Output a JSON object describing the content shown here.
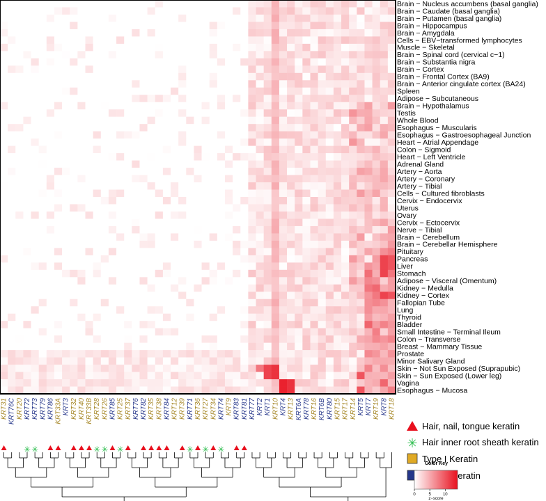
{
  "chart_data": {
    "type": "heatmap",
    "title": "",
    "xlabel": "",
    "ylabel": "",
    "columns": [
      {
        "name": "KRT31",
        "type": "I",
        "hair": "nail"
      },
      {
        "name": "KRT76C",
        "type": "II",
        "hair": ""
      },
      {
        "name": "KRT20",
        "type": "I",
        "hair": ""
      },
      {
        "name": "KRT72",
        "type": "II",
        "hair": "root"
      },
      {
        "name": "KRT73",
        "type": "II",
        "hair": "root"
      },
      {
        "name": "KRT79",
        "type": "II",
        "hair": ""
      },
      {
        "name": "KRT86",
        "type": "II",
        "hair": "nail"
      },
      {
        "name": "KRT33A",
        "type": "I",
        "hair": "nail"
      },
      {
        "name": "KRT3",
        "type": "II",
        "hair": ""
      },
      {
        "name": "KRT32",
        "type": "I",
        "hair": "nail"
      },
      {
        "name": "KRT40",
        "type": "I",
        "hair": "nail"
      },
      {
        "name": "KRT33B",
        "type": "I",
        "hair": "nail"
      },
      {
        "name": "KRT28",
        "type": "I",
        "hair": "root"
      },
      {
        "name": "KRT26",
        "type": "I",
        "hair": "root"
      },
      {
        "name": "KRT85",
        "type": "II",
        "hair": "nail"
      },
      {
        "name": "KRT25",
        "type": "I",
        "hair": "root"
      },
      {
        "name": "KRT37",
        "type": "I",
        "hair": "nail"
      },
      {
        "name": "KRT76",
        "type": "II",
        "hair": ""
      },
      {
        "name": "KRT82",
        "type": "II",
        "hair": "nail"
      },
      {
        "name": "KRT35",
        "type": "I",
        "hair": "nail"
      },
      {
        "name": "KRT38",
        "type": "I",
        "hair": "nail"
      },
      {
        "name": "KRT84",
        "type": "II",
        "hair": "nail"
      },
      {
        "name": "KRT12",
        "type": "I",
        "hair": ""
      },
      {
        "name": "KRT39",
        "type": "I",
        "hair": "nail"
      },
      {
        "name": "KRT71",
        "type": "II",
        "hair": "root"
      },
      {
        "name": "KRT36",
        "type": "I",
        "hair": "nail"
      },
      {
        "name": "KRT27",
        "type": "I",
        "hair": "root"
      },
      {
        "name": "KRT34",
        "type": "I",
        "hair": "nail"
      },
      {
        "name": "KRT74",
        "type": "II",
        "hair": "root"
      },
      {
        "name": "KRT9",
        "type": "I",
        "hair": ""
      },
      {
        "name": "KRT83",
        "type": "II",
        "hair": "nail"
      },
      {
        "name": "KRT81",
        "type": "II",
        "hair": "nail"
      },
      {
        "name": "KRT77",
        "type": "II",
        "hair": ""
      },
      {
        "name": "KRT2",
        "type": "II",
        "hair": ""
      },
      {
        "name": "KRT1",
        "type": "II",
        "hair": ""
      },
      {
        "name": "KRT10",
        "type": "I",
        "hair": ""
      },
      {
        "name": "KRT4",
        "type": "II",
        "hair": ""
      },
      {
        "name": "KRT13",
        "type": "I",
        "hair": ""
      },
      {
        "name": "KRT6A",
        "type": "II",
        "hair": ""
      },
      {
        "name": "KRT78",
        "type": "II",
        "hair": ""
      },
      {
        "name": "KRT16",
        "type": "I",
        "hair": ""
      },
      {
        "name": "KRT6B",
        "type": "II",
        "hair": ""
      },
      {
        "name": "KRT80",
        "type": "II",
        "hair": ""
      },
      {
        "name": "KRT15",
        "type": "I",
        "hair": ""
      },
      {
        "name": "KRT17",
        "type": "I",
        "hair": ""
      },
      {
        "name": "KRT14",
        "type": "I",
        "hair": ""
      },
      {
        "name": "KRT5",
        "type": "II",
        "hair": ""
      },
      {
        "name": "KRT7",
        "type": "II",
        "hair": ""
      },
      {
        "name": "KRT19",
        "type": "I",
        "hair": ""
      },
      {
        "name": "KRT8",
        "type": "II",
        "hair": ""
      },
      {
        "name": "KRT18",
        "type": "I",
        "hair": ""
      }
    ],
    "rows": [
      "Brain − Nucleus accumbens (basal ganglia)",
      "Brain − Caudate (basal ganglia)",
      "Brain − Putamen (basal ganglia)",
      "Brain − Hippocampus",
      "Brain − Amygdala",
      "Cells − EBV−transformed lymphocytes",
      "Muscle − Skeletal",
      "Brain − Spinal cord (cervical c−1)",
      "Brain − Substantia nigra",
      "Brain − Cortex",
      "Brain − Frontal Cortex (BA9)",
      "Brain − Anterior cingulate cortex (BA24)",
      "Spleen",
      "Adipose − Subcutaneous",
      "Brain − Hypothalamus",
      "Testis",
      "Whole Blood",
      "Esophagus − Muscularis",
      "Esophagus − Gastroesophageal Junction",
      "Heart − Atrial Appendage",
      "Colon − Sigmoid",
      "Heart − Left Ventricle",
      "Adrenal Gland",
      "Artery − Aorta",
      "Artery − Coronary",
      "Artery − Tibial",
      "Cells − Cultured fibroblasts",
      "Cervix − Endocervix",
      "Uterus",
      "Ovary",
      "Cervix − Ectocervix",
      "Nerve − Tibial",
      "Brain − Cerebellum",
      "Brain − Cerebellar Hemisphere",
      "Pituitary",
      "Pancreas",
      "Liver",
      "Stomach",
      "Adipose − Visceral (Omentum)",
      "Kidney − Medulla",
      "Kidney − Cortex",
      "Fallopian Tube",
      "Lung",
      "Thyroid",
      "Bladder",
      "Small Intestine − Terminal Ileum",
      "Colon − Transverse",
      "Breast − Mammary Tissue",
      "Prostate",
      "Minor Salivary Gland",
      "Skin − Not Sun Exposed (Suprapubic)",
      "Skin − Sun Exposed (Lower leg)",
      "Vagina",
      "Esophagus − Mucosa"
    ],
    "values_note": "",
    "highlights": [
      {
        "col": "KRT10",
        "rows": [
          "Skin − Not Sun Exposed (Suprapubic)",
          "Skin − Sun Exposed (Lower leg)"
        ],
        "z": 12
      },
      {
        "col": "KRT1",
        "rows": [
          "Skin − Not Sun Exposed (Suprapubic)",
          "Skin − Sun Exposed (Lower leg)"
        ],
        "z": 11
      },
      {
        "col": "KRT2",
        "rows": [
          "Skin − Not Sun Exposed (Suprapubic)"
        ],
        "z": 8
      },
      {
        "col": "KRT4",
        "rows": [
          "Esophagus − Mucosa",
          "Vagina"
        ],
        "z": 13
      },
      {
        "col": "KRT13",
        "rows": [
          "Esophagus − Mucosa",
          "Vagina"
        ],
        "z": 12
      },
      {
        "col": "KRT8",
        "rows": [
          "Liver",
          "Pancreas",
          "Stomach",
          "Kidney − Cortex"
        ],
        "z": 11
      },
      {
        "col": "KRT18",
        "rows": [
          "Liver",
          "Pancreas",
          "Kidney − Cortex"
        ],
        "z": 10
      },
      {
        "col": "KRT5",
        "rows": [
          "Skin − Sun Exposed (Lower leg)",
          "Esophagus − Mucosa"
        ],
        "z": 10
      }
    ],
    "colorscale": {
      "min": 0,
      "max": 14,
      "low": "#ffffff",
      "high": "#e8101e"
    },
    "ticks": [
      0,
      5,
      10
    ]
  },
  "legend": {
    "hair_nail": "Hair, nail, tongue keratin",
    "hair_root": "Hair inner root sheath keratin",
    "type1": "Type I Keratin",
    "type2": "Type II Keratin"
  },
  "color_key": {
    "title": "Color Key",
    "xlabel": "z−score",
    "ticks": [
      "0",
      "5",
      "10"
    ]
  },
  "colors": {
    "type1": "#a88a2c",
    "type2": "#2a3a8c",
    "triangle": "#e8101e",
    "asterisk": "#2dbd4e",
    "type1_box": "#e0aa25",
    "type2_box": "#25378a"
  }
}
